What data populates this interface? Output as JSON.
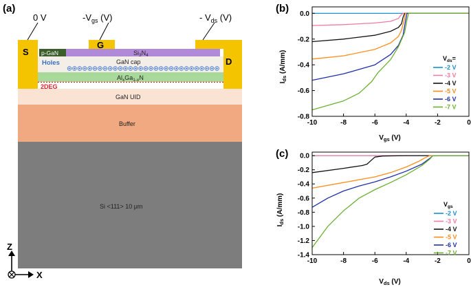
{
  "panel_a": {
    "label": "(a)",
    "source_label": "S",
    "gate_label": "G",
    "drain_label": "D",
    "v_source": "0 V",
    "v_gate_prefix": "-V",
    "v_gate_sub": "gs",
    "v_gate_suffix": " (V)",
    "v_drain_prefix": "- V",
    "v_drain_sub": "ds",
    "v_drain_suffix": " (V)",
    "pgan": "p-GaN",
    "sin_prefix": "Si",
    "sin_sub1": "3",
    "sin_mid": "N",
    "sin_sub2": "4",
    "holes": "Holes",
    "gan_cap": "GaN cap",
    "algan_a": "Al",
    "algan_sub1": "x",
    "algan_b": "Ga",
    "algan_sub2": "1-x",
    "algan_c": "N",
    "twodeg": "2DEG",
    "gan_uid": "GaN UID",
    "buffer": "Buffer",
    "substrate": "Si <111> 10 μm",
    "axis_z": "Z",
    "axis_x": "X",
    "colors": {
      "contact": "#f5c400",
      "sin": "#b08ad8",
      "pgan": "#3b5e2a",
      "gan_cap": "#f3eee8",
      "algan": "#a8d89a",
      "gan_uid": "#fbe3d4",
      "buffer": "#f0a980",
      "substrate": "#7d7d7d",
      "holes_text": "#3a6fc4",
      "twodeg_text": "#e0202a"
    }
  },
  "chart_data": [
    {
      "panel": "(b)",
      "type": "line",
      "xlabel_main": "V",
      "xlabel_sub": "gs",
      "xlabel_unit": " (V)",
      "ylabel_main": "I",
      "ylabel_sub": "ds",
      "ylabel_unit": " (A/mm)",
      "xlim": [
        -10,
        0
      ],
      "ylim": [
        -0.8,
        0.05
      ],
      "xticks": [
        -10,
        -8,
        -6,
        -4,
        -2,
        0
      ],
      "yticks": [
        0.0,
        -0.2,
        -0.4,
        -0.6,
        -0.8
      ],
      "ytick_labels": [
        "0.0",
        "-0.2",
        "-0.4",
        "-0.6",
        "-0.8"
      ],
      "legend_title_main": "V",
      "legend_title_sub": "ds",
      "legend_title_suffix": "=",
      "legend_position": "bottom-right",
      "series": [
        {
          "name": "-2 V",
          "color": "#1a8fd6",
          "x": [
            -10,
            0
          ],
          "y": [
            0.0,
            0.0
          ]
        },
        {
          "name": "-3 V",
          "color": "#f07aa0",
          "x": [
            -10,
            -8,
            -6,
            -5,
            -4.5,
            -4.35,
            -4.2,
            0
          ],
          "y": [
            -0.095,
            -0.088,
            -0.075,
            -0.062,
            -0.04,
            -0.015,
            0.0,
            0.0
          ]
        },
        {
          "name": "-4 V",
          "color": "#111111",
          "x": [
            -10,
            -8,
            -6,
            -5,
            -4.5,
            -4.3,
            -4.2,
            -4.1,
            0
          ],
          "y": [
            -0.22,
            -0.2,
            -0.17,
            -0.14,
            -0.11,
            -0.08,
            -0.03,
            0.0,
            0.0
          ]
        },
        {
          "name": "-5 V",
          "color": "#ff8c1a",
          "x": [
            -10,
            -8,
            -6,
            -5,
            -4.5,
            -4.3,
            -4.15,
            -4.05,
            0
          ],
          "y": [
            -0.355,
            -0.33,
            -0.28,
            -0.23,
            -0.18,
            -0.13,
            -0.06,
            0.0,
            0.0
          ]
        },
        {
          "name": "-6 V",
          "color": "#1f2faa",
          "x": [
            -10,
            -8,
            -6,
            -5,
            -4.5,
            -4.2,
            -4.05,
            -3.95,
            0
          ],
          "y": [
            -0.52,
            -0.47,
            -0.4,
            -0.32,
            -0.25,
            -0.17,
            -0.06,
            0.0,
            0.0
          ]
        },
        {
          "name": "-7 V",
          "color": "#6ab030",
          "x": [
            -10,
            -8,
            -7,
            -6.2,
            -5.8,
            -5,
            -4.5,
            -4.1,
            -3.95,
            -3.85,
            0
          ],
          "y": [
            -0.75,
            -0.68,
            -0.62,
            -0.53,
            -0.46,
            -0.36,
            -0.26,
            -0.15,
            -0.05,
            0.0,
            0.0
          ]
        }
      ]
    },
    {
      "panel": "(c)",
      "type": "line",
      "xlabel_main": "V",
      "xlabel_sub": "ds",
      "xlabel_unit": " (V)",
      "ylabel_main": "I",
      "ylabel_sub": "ds",
      "ylabel_unit": " (A/mm)",
      "xlim": [
        -10,
        0
      ],
      "ylim": [
        -1.4,
        0.05
      ],
      "xticks": [
        -10,
        -8,
        -6,
        -4,
        -2,
        0
      ],
      "yticks": [
        0.0,
        -0.2,
        -0.4,
        -0.6,
        -0.8,
        -1.0,
        -1.2,
        -1.4
      ],
      "ytick_labels": [
        "0.0",
        "-0.2",
        "-0.4",
        "-0.6",
        "-0.8",
        "-1.0",
        "-1.2",
        "-1.4"
      ],
      "legend_title_main": "V",
      "legend_title_sub": "gs",
      "legend_title_suffix": "",
      "legend_position": "bottom-right",
      "series": [
        {
          "name": "-2 V",
          "color": "#1a8fd6",
          "x": [
            -10,
            0
          ],
          "y": [
            0.0,
            0.0
          ]
        },
        {
          "name": "-3 V",
          "color": "#f07aa0",
          "x": [
            -10,
            0
          ],
          "y": [
            0.0,
            0.0
          ]
        },
        {
          "name": "-4 V",
          "color": "#111111",
          "x": [
            -10,
            -8,
            -6.8,
            -6.5,
            -6.2,
            -6.0,
            -5.5,
            -4,
            -2.8,
            0
          ],
          "y": [
            -0.24,
            -0.18,
            -0.14,
            -0.12,
            -0.06,
            -0.02,
            -0.005,
            0.0,
            0.0,
            0.0
          ]
        },
        {
          "name": "-5 V",
          "color": "#ff8c1a",
          "x": [
            -10,
            -8,
            -6,
            -5,
            -4,
            -3.2,
            -2.8,
            -2.5,
            0
          ],
          "y": [
            -0.46,
            -0.38,
            -0.3,
            -0.24,
            -0.16,
            -0.08,
            -0.03,
            0.0,
            0.0
          ]
        },
        {
          "name": "-6 V",
          "color": "#1f2faa",
          "x": [
            -10,
            -9,
            -8,
            -7,
            -6,
            -5,
            -4,
            -3,
            -2.5,
            -2.3,
            0
          ],
          "y": [
            -0.73,
            -0.6,
            -0.5,
            -0.43,
            -0.37,
            -0.3,
            -0.22,
            -0.12,
            -0.04,
            0.0,
            0.0
          ]
        },
        {
          "name": "-7 V",
          "color": "#6ab030",
          "x": [
            -10,
            -9,
            -8,
            -7,
            -6,
            -5,
            -4,
            -3,
            -2.5,
            -2.3,
            0
          ],
          "y": [
            -1.3,
            -1.0,
            -0.78,
            -0.6,
            -0.48,
            -0.38,
            -0.27,
            -0.14,
            -0.05,
            0.0,
            0.0
          ]
        }
      ]
    }
  ]
}
